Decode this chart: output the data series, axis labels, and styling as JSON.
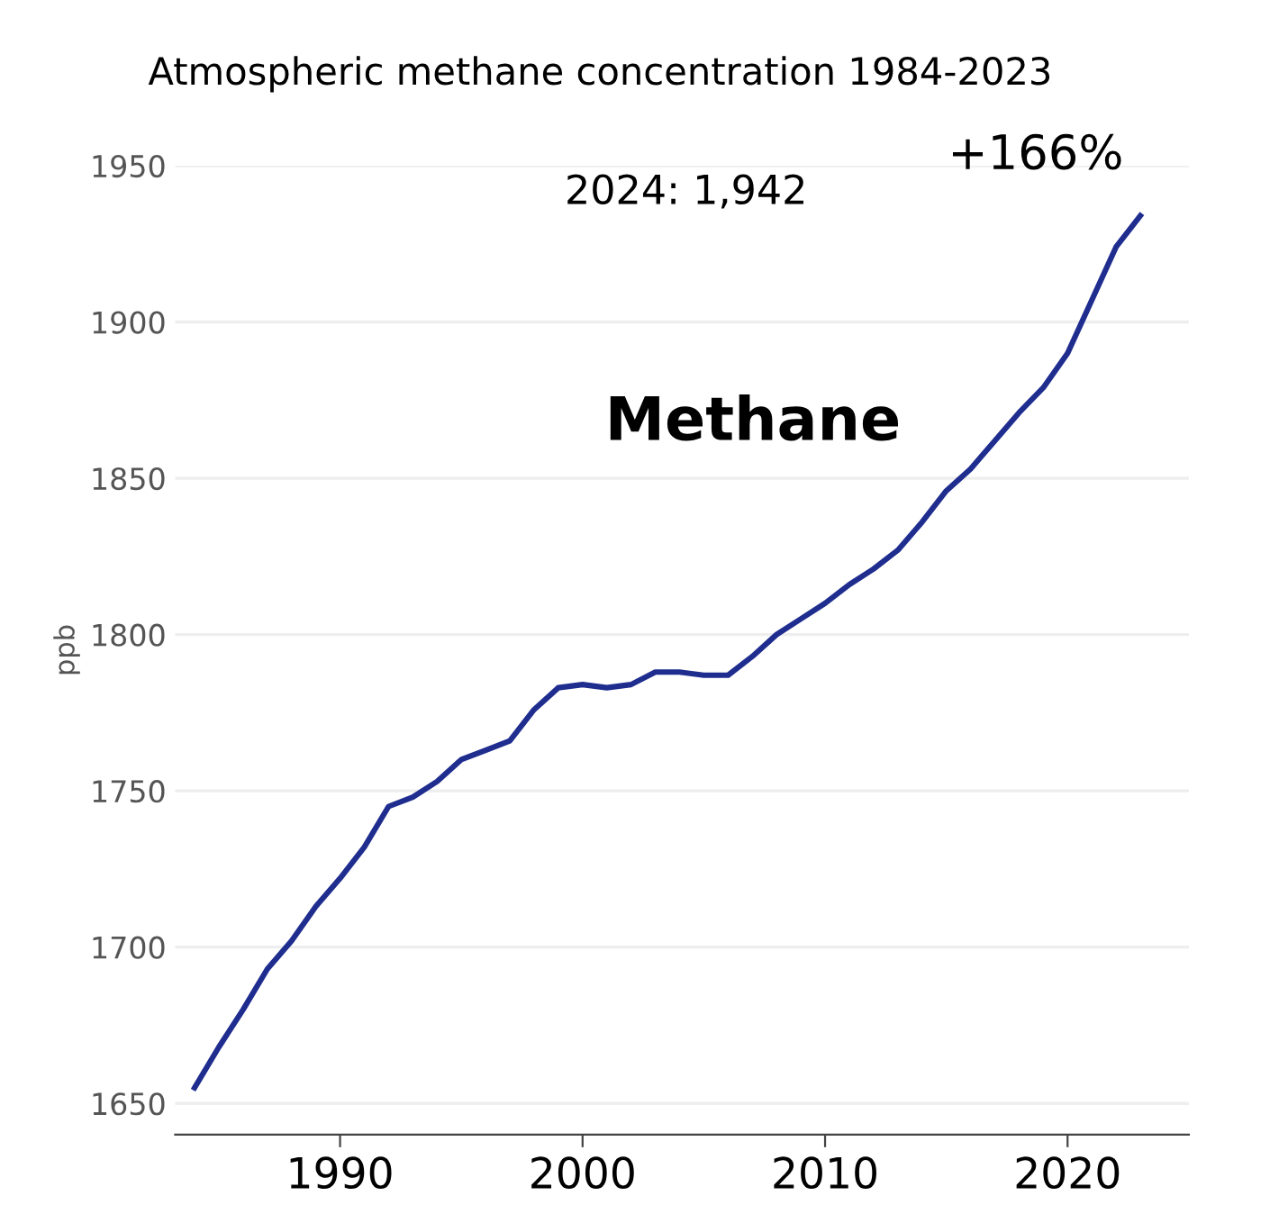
{
  "chart_data": {
    "type": "line",
    "title": "Atmospheric methane concentration 1984-2023",
    "ylabel": "ppb",
    "x": [
      1984,
      1985,
      1986,
      1987,
      1988,
      1989,
      1990,
      1991,
      1992,
      1993,
      1994,
      1995,
      1996,
      1997,
      1998,
      1999,
      2000,
      2001,
      2002,
      2003,
      2004,
      2005,
      2006,
      2007,
      2008,
      2009,
      2010,
      2011,
      2012,
      2013,
      2014,
      2015,
      2016,
      2017,
      2018,
      2019,
      2020,
      2021,
      2022,
      2023
    ],
    "series": [
      {
        "name": "Methane",
        "color": "#1f2d8f",
        "values": [
          1655,
          1668,
          1680,
          1693,
          1702,
          1713,
          1722,
          1732,
          1745,
          1748,
          1753,
          1760,
          1763,
          1766,
          1776,
          1783,
          1784,
          1783,
          1784,
          1788,
          1788,
          1787,
          1787,
          1793,
          1800,
          1805,
          1810,
          1816,
          1821,
          1827,
          1836,
          1846,
          1853,
          1862,
          1871,
          1879,
          1890,
          1907,
          1924,
          1934
        ]
      }
    ],
    "annotations": [
      "2024: 1,942",
      "+166%"
    ],
    "xlim": [
      1983.2,
      2025
    ],
    "ylim": [
      1640,
      1950
    ],
    "xticks": [
      1990,
      2000,
      2010,
      2020
    ],
    "yticks": [
      1650,
      1700,
      1750,
      1800,
      1850,
      1900,
      1950
    ],
    "grid": "y",
    "legend": false,
    "marker": "none",
    "line_style": "solid"
  }
}
